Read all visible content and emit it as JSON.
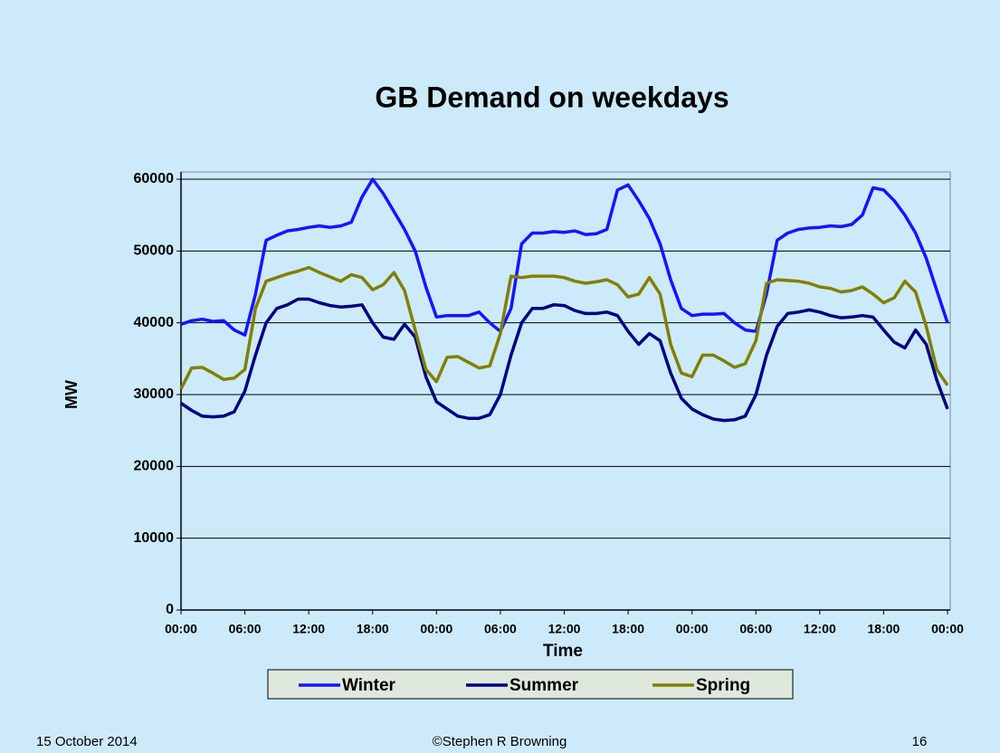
{
  "chart_data": {
    "type": "line",
    "title": "GB Demand on weekdays",
    "x_label": "Time",
    "y_label": "MW",
    "x": [
      0,
      1,
      2,
      3,
      4,
      5,
      6,
      7,
      8,
      9,
      10,
      11,
      12,
      13,
      14,
      15,
      16,
      17,
      18,
      19,
      20,
      21,
      22,
      23,
      24,
      25,
      26,
      27,
      28,
      29,
      30,
      31,
      32,
      33,
      34,
      35,
      36,
      37,
      38,
      39,
      40,
      41,
      42,
      43,
      44,
      45,
      46,
      47,
      48,
      49,
      50,
      51,
      52,
      53,
      54,
      55,
      56,
      57,
      58,
      59,
      60,
      61,
      62,
      63,
      64,
      65,
      66,
      67,
      68,
      69,
      70,
      71,
      72
    ],
    "series": [
      {
        "name": "Winter",
        "color": "#1414ff",
        "values": [
          39800,
          40300,
          40500,
          40200,
          40300,
          39000,
          38300,
          44000,
          51500,
          52200,
          52800,
          53000,
          53300,
          53500,
          53300,
          53500,
          54000,
          57500,
          60000,
          58000,
          55500,
          53000,
          50000,
          45000,
          40800,
          41000,
          41000,
          41000,
          41500,
          40000,
          38800,
          42000,
          51000,
          52500,
          52500,
          52700,
          52600,
          52800,
          52300,
          52400,
          53000,
          58500,
          59200,
          57000,
          54500,
          51000,
          46000,
          42000,
          41000,
          41200,
          41200,
          41300,
          40000,
          39000,
          38800,
          44000,
          51500,
          52500,
          53000,
          53200,
          53300,
          53500,
          53400,
          53700,
          55000,
          58800,
          58500,
          57000,
          55000,
          52500,
          49000,
          44500,
          40000
        ]
      },
      {
        "name": "Summer",
        "color": "#000080",
        "values": [
          28800,
          27800,
          27000,
          26900,
          27000,
          27600,
          30500,
          35500,
          40000,
          42000,
          42500,
          43300,
          43300,
          42800,
          42400,
          42200,
          42300,
          42500,
          40000,
          38000,
          37700,
          39800,
          38000,
          32500,
          29000,
          28000,
          27000,
          26700,
          26700,
          27200,
          30000,
          35500,
          40000,
          42000,
          42000,
          42500,
          42400,
          41700,
          41300,
          41300,
          41500,
          41000,
          38800,
          37000,
          38500,
          37500,
          33000,
          29500,
          28000,
          27200,
          26600,
          26400,
          26500,
          27000,
          30000,
          35500,
          39500,
          41300,
          41500,
          41800,
          41500,
          41000,
          40700,
          40800,
          41000,
          40800,
          39000,
          37300,
          36500,
          39000,
          37000,
          32000,
          28000
        ]
      },
      {
        "name": "Spring",
        "color": "#808000",
        "values": [
          30800,
          33700,
          33800,
          33000,
          32100,
          32300,
          33500,
          42000,
          45800,
          46300,
          46800,
          47200,
          47700,
          47000,
          46400,
          45800,
          46700,
          46300,
          44600,
          45300,
          47000,
          44500,
          39000,
          33500,
          31800,
          35200,
          35300,
          34500,
          33700,
          34000,
          38500,
          46500,
          46300,
          46500,
          46500,
          46500,
          46300,
          45800,
          45500,
          45700,
          46000,
          45300,
          43600,
          44000,
          46300,
          44000,
          37000,
          33000,
          32500,
          35500,
          35500,
          34700,
          33800,
          34300,
          37500,
          45500,
          46000,
          45900,
          45800,
          45500,
          45000,
          44800,
          44300,
          44500,
          45000,
          44000,
          42800,
          43500,
          45800,
          44300,
          39500,
          33500,
          31300
        ]
      }
    ],
    "xlim": [
      0,
      72
    ],
    "xticks": [
      {
        "value": 0,
        "label": "00:00"
      },
      {
        "value": 6,
        "label": "06:00"
      },
      {
        "value": 12,
        "label": "12:00"
      },
      {
        "value": 18,
        "label": "18:00"
      },
      {
        "value": 24,
        "label": "00:00"
      },
      {
        "value": 30,
        "label": "06:00"
      },
      {
        "value": 36,
        "label": "12:00"
      },
      {
        "value": 42,
        "label": "18:00"
      },
      {
        "value": 48,
        "label": "00:00"
      },
      {
        "value": 54,
        "label": "06:00"
      },
      {
        "value": 60,
        "label": "12:00"
      },
      {
        "value": 66,
        "label": "18:00"
      },
      {
        "value": 72,
        "label": "00:00"
      }
    ],
    "ylim": [
      0,
      60000
    ],
    "yticks": [
      0,
      10000,
      20000,
      30000,
      40000,
      50000,
      60000
    ],
    "grid": true,
    "legend": "bottom"
  },
  "footer": {
    "date": "15 October 2014",
    "copyright": "©Stephen R Browning",
    "page": "16"
  }
}
